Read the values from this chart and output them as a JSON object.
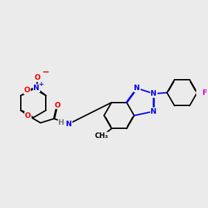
{
  "background_color": "#ebebeb",
  "bond_color": "#000000",
  "atom_colors": {
    "N": "#0000ee",
    "O": "#ee0000",
    "F": "#dd00dd",
    "H": "#777777",
    "C": "#000000"
  },
  "figsize": [
    3.0,
    3.0
  ],
  "dpi": 100
}
